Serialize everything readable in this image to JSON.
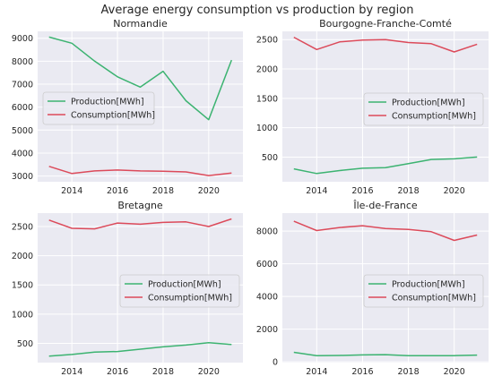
{
  "figure": {
    "title": "Average energy consumption vs production by region"
  },
  "colors": {
    "production": "#3cb371",
    "consumption": "#dc4a5a",
    "panel_bg": "#eaeaf2",
    "grid": "#ffffff"
  },
  "chart_data": [
    {
      "type": "line",
      "title": "Normandie",
      "x": [
        2013,
        2014,
        2015,
        2016,
        2017,
        2018,
        2019,
        2020,
        2021
      ],
      "xticks": [
        2014,
        2016,
        2018,
        2020
      ],
      "xlim": [
        2012.5,
        2021.5
      ],
      "ylim": [
        2750,
        9300
      ],
      "yticks": [
        3000,
        4000,
        5000,
        6000,
        7000,
        8000,
        9000
      ],
      "grid": true,
      "legend": "center-left",
      "series": [
        {
          "name": "Production[MWh]",
          "values": [
            9050,
            8780,
            8000,
            7320,
            6870,
            7560,
            6280,
            5450,
            8050
          ]
        },
        {
          "name": "Consumption[MWh]",
          "values": [
            3420,
            3110,
            3220,
            3260,
            3220,
            3210,
            3180,
            3020,
            3130
          ]
        }
      ]
    },
    {
      "type": "line",
      "title": "Bourgogne-Franche-Comté",
      "x": [
        2013,
        2014,
        2015,
        2016,
        2017,
        2018,
        2019,
        2020,
        2021
      ],
      "xticks": [
        2014,
        2016,
        2018,
        2020
      ],
      "xlim": [
        2012.5,
        2021.5
      ],
      "ylim": [
        80,
        2640
      ],
      "yticks": [
        500,
        1000,
        1500,
        2000,
        2500
      ],
      "grid": true,
      "legend": "center-right",
      "series": [
        {
          "name": "Production[MWh]",
          "values": [
            300,
            220,
            270,
            310,
            320,
            390,
            460,
            470,
            500
          ]
        },
        {
          "name": "Consumption[MWh]",
          "values": [
            2540,
            2330,
            2460,
            2490,
            2500,
            2450,
            2430,
            2290,
            2420
          ]
        }
      ]
    },
    {
      "type": "line",
      "title": "Bretagne",
      "x": [
        2013,
        2014,
        2015,
        2016,
        2017,
        2018,
        2019,
        2020,
        2021
      ],
      "xticks": [
        2014,
        2016,
        2018,
        2020
      ],
      "xlim": [
        2012.5,
        2021.5
      ],
      "ylim": [
        170,
        2730
      ],
      "yticks": [
        500,
        1000,
        1500,
        2000,
        2500
      ],
      "grid": true,
      "legend": "center-right",
      "series": [
        {
          "name": "Production[MWh]",
          "values": [
            280,
            310,
            350,
            360,
            400,
            440,
            470,
            510,
            480
          ]
        },
        {
          "name": "Consumption[MWh]",
          "values": [
            2610,
            2470,
            2460,
            2560,
            2540,
            2570,
            2580,
            2500,
            2630
          ]
        }
      ]
    },
    {
      "type": "line",
      "title": "Île-de-France",
      "x": [
        2013,
        2014,
        2015,
        2016,
        2017,
        2018,
        2019,
        2020,
        2021
      ],
      "xticks": [
        2014,
        2016,
        2018,
        2020
      ],
      "xlim": [
        2012.5,
        2021.5
      ],
      "ylim": [
        -50,
        9100
      ],
      "yticks": [
        0,
        2000,
        4000,
        6000,
        8000
      ],
      "grid": true,
      "legend": "center-right",
      "series": [
        {
          "name": "Production[MWh]",
          "values": [
            580,
            370,
            390,
            420,
            440,
            370,
            370,
            380,
            410
          ]
        },
        {
          "name": "Consumption[MWh]",
          "values": [
            8600,
            8030,
            8220,
            8330,
            8160,
            8100,
            7960,
            7430,
            7760
          ]
        }
      ]
    }
  ]
}
